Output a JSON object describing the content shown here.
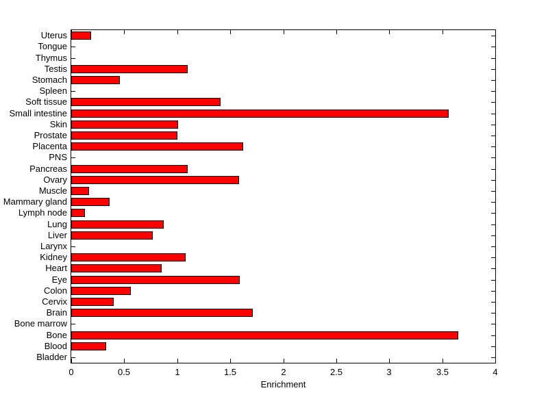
{
  "figure": {
    "background": "#ffffff",
    "axis_color": "#000000"
  },
  "chart_data": {
    "type": "bar",
    "orientation": "horizontal",
    "title": "",
    "xlabel": "Enrichment",
    "ylabel": "",
    "xlim": [
      0,
      4
    ],
    "xticks": [
      0,
      0.5,
      1,
      1.5,
      2,
      2.5,
      3,
      3.5,
      4
    ],
    "xtick_labels": [
      "0",
      "0.5",
      "1",
      "1.5",
      "2",
      "2.5",
      "3",
      "3.5",
      "4"
    ],
    "grid": false,
    "legend_position": "none",
    "bar_color": "#ff0000",
    "bar_edge_color": "#000000",
    "categories": [
      "Uterus",
      "Tongue",
      "Thymus",
      "Testis",
      "Stomach",
      "Spleen",
      "Soft tissue",
      "Small intestine",
      "Skin",
      "Prostate",
      "Placenta",
      "PNS",
      "Pancreas",
      "Ovary",
      "Muscle",
      "Mammary gland",
      "Lymph node",
      "Lung",
      "Liver",
      "Larynx",
      "Kidney",
      "Heart",
      "Eye",
      "Colon",
      "Cervix",
      "Brain",
      "Bone marrow",
      "Bone",
      "Blood",
      "Bladder"
    ],
    "values": [
      0.19,
      0,
      0,
      1.1,
      0.46,
      0,
      1.41,
      3.56,
      1.01,
      1.0,
      1.62,
      0,
      1.1,
      1.58,
      0.17,
      0.36,
      0.13,
      0.87,
      0.77,
      0,
      1.08,
      0.85,
      1.59,
      0.56,
      0.4,
      1.71,
      0,
      3.65,
      0.33,
      0
    ]
  }
}
